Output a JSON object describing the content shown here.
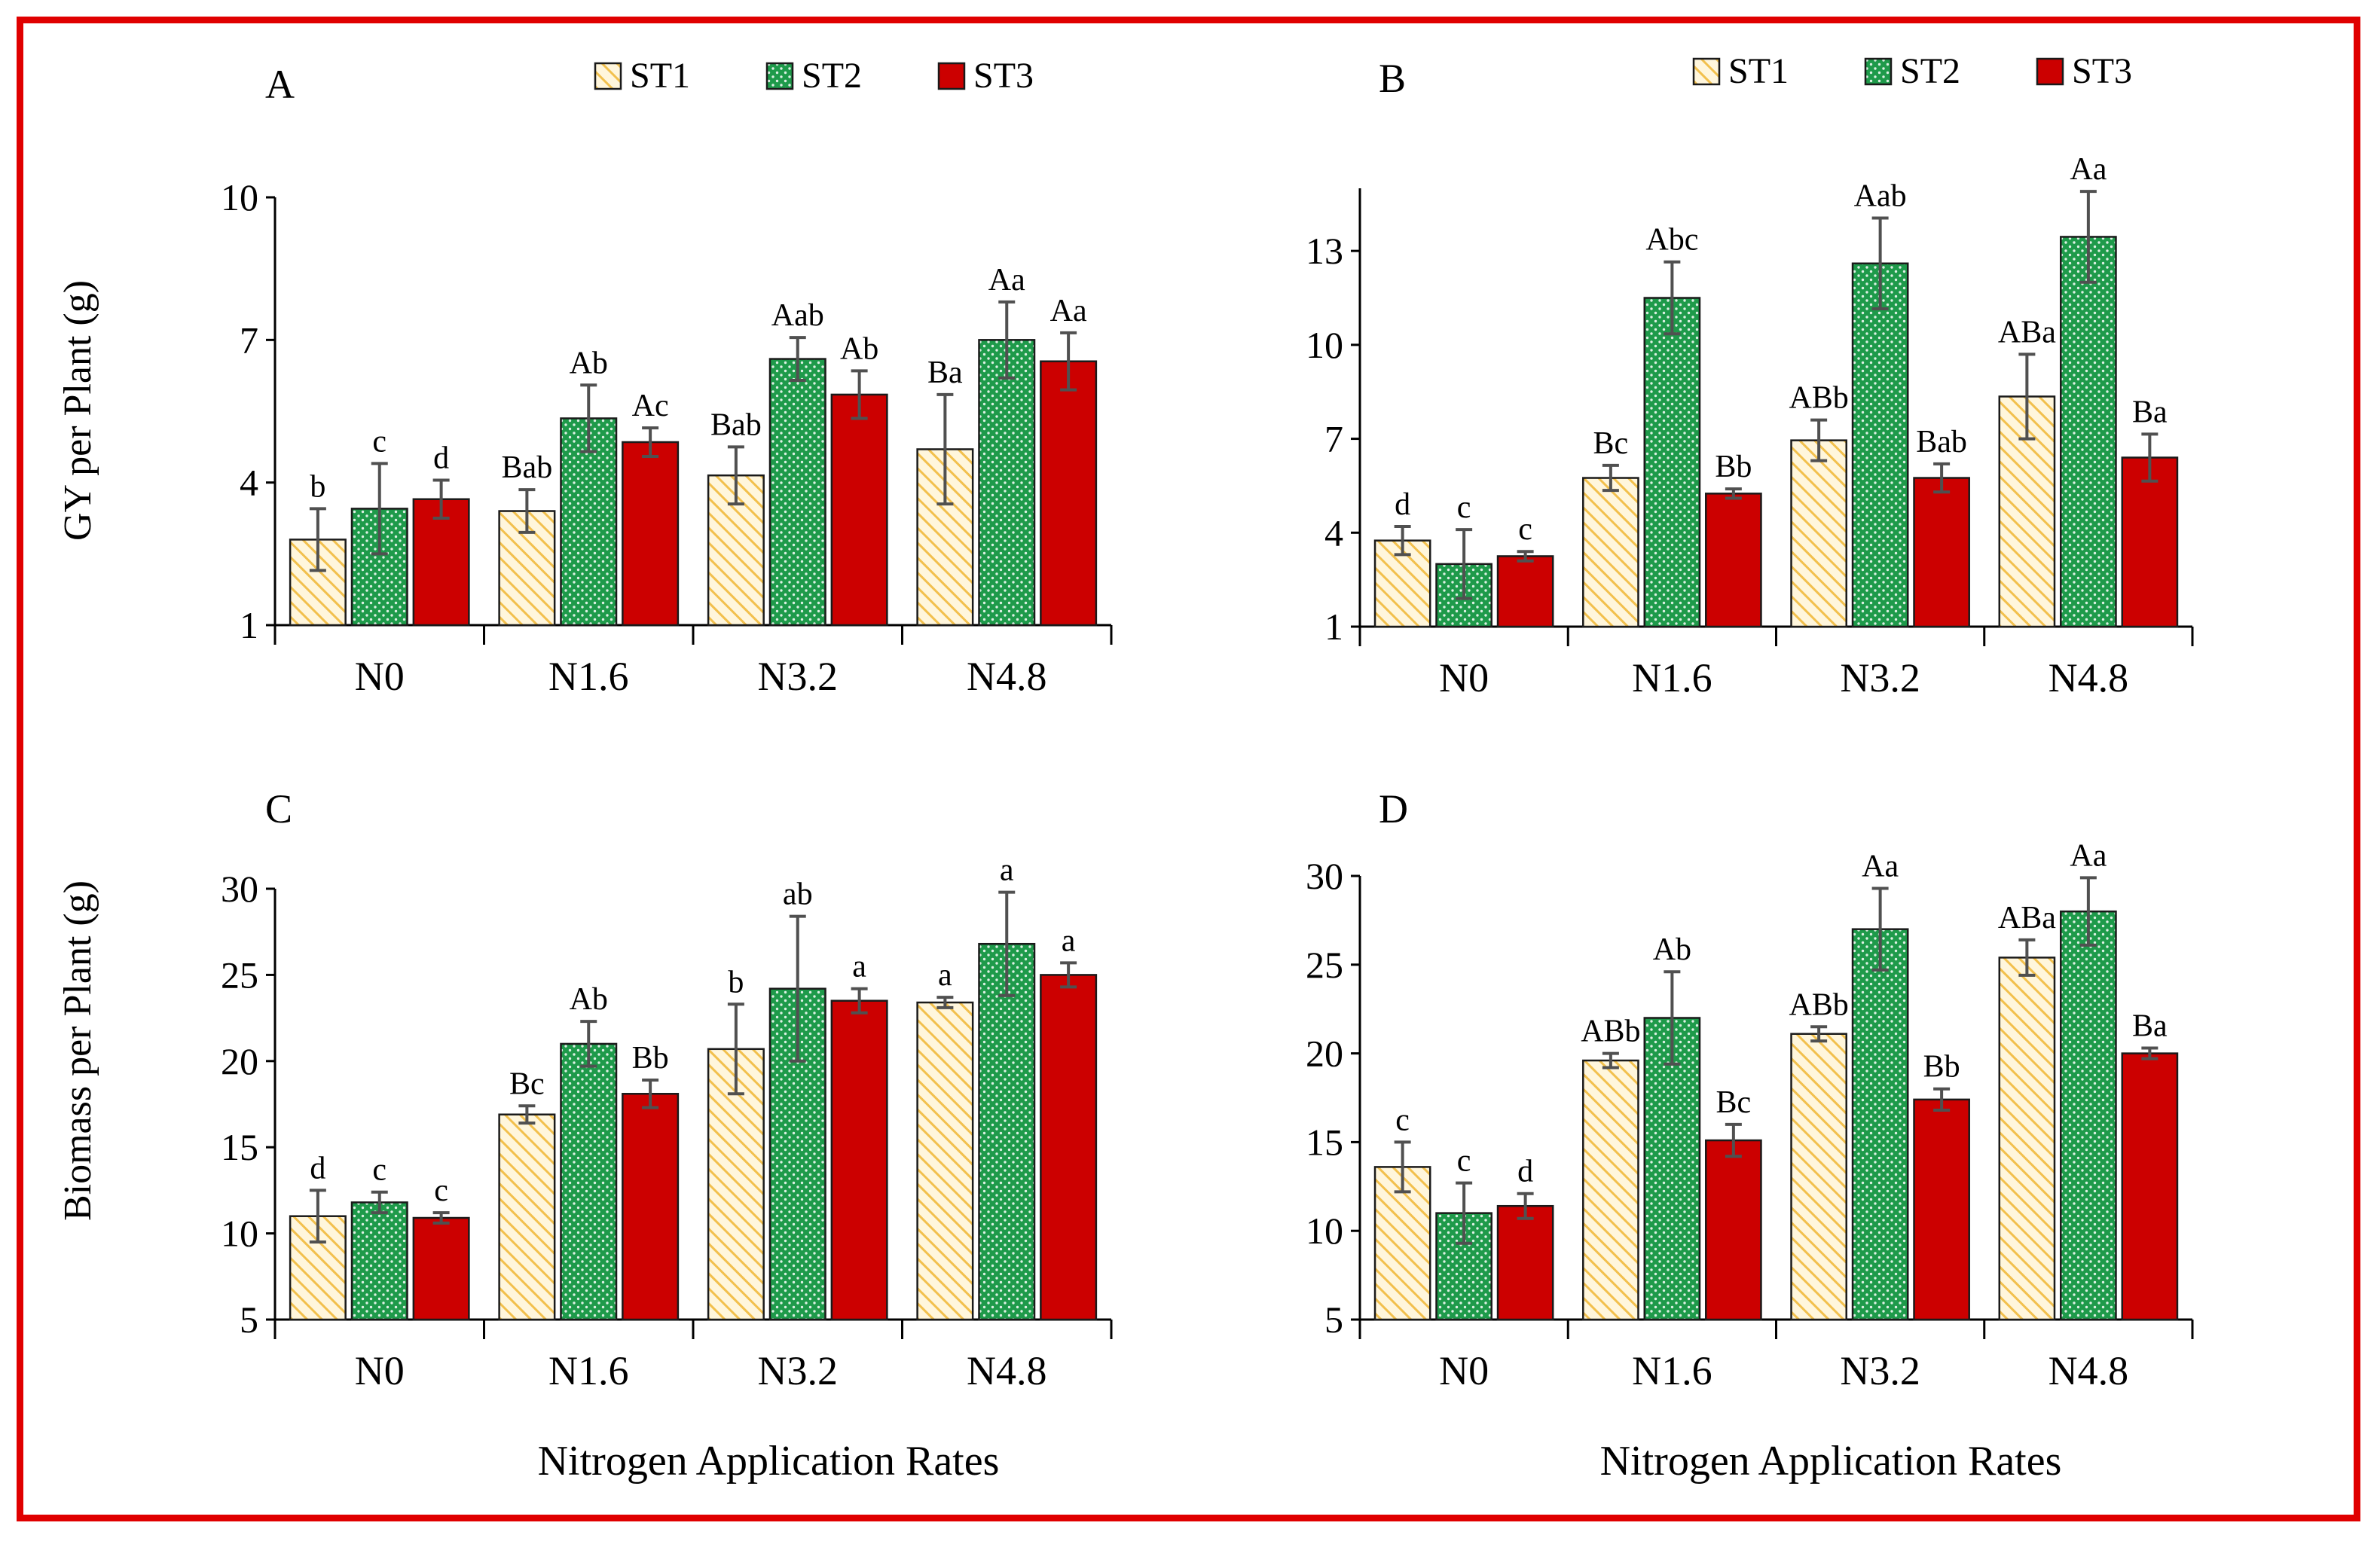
{
  "figure": {
    "border_color": "#e00000"
  },
  "legend": [
    {
      "name": "ST1",
      "pattern": "hatch",
      "color": "#f2c04d",
      "bg": "#fff6dc"
    },
    {
      "name": "ST2",
      "pattern": "dots",
      "color": "#1e9a4a"
    },
    {
      "name": "ST3",
      "pattern": "solid",
      "color": "#cc0000"
    }
  ],
  "chart_data": [
    {
      "panel": "A",
      "type": "bar",
      "ylabel": "GY per Plant (g)",
      "xlabel": "",
      "ylim": [
        1,
        10
      ],
      "yticks": [
        1,
        4,
        7,
        10
      ],
      "categories": [
        "N0",
        "N1.6",
        "N3.2",
        "N4.8"
      ],
      "series": [
        {
          "name": "ST1",
          "values": [
            2.8,
            3.4,
            4.15,
            4.7
          ],
          "errors": [
            0.65,
            0.45,
            0.6,
            1.15
          ],
          "labels": [
            "b",
            "Bab",
            "Bab",
            "Ba"
          ]
        },
        {
          "name": "ST2",
          "values": [
            3.45,
            5.35,
            6.6,
            7.0
          ],
          "errors": [
            0.95,
            0.7,
            0.45,
            0.8
          ],
          "labels": [
            "c",
            "Ab",
            "Aab",
            "Aa"
          ]
        },
        {
          "name": "ST3",
          "values": [
            3.65,
            4.85,
            5.85,
            6.55
          ],
          "errors": [
            0.4,
            0.3,
            0.5,
            0.6
          ],
          "labels": [
            "d",
            "Ac",
            "Ab",
            "Aa"
          ]
        }
      ]
    },
    {
      "panel": "B",
      "type": "bar",
      "ylabel": "",
      "xlabel": "",
      "ylim": [
        1,
        15
      ],
      "yticks": [
        1,
        4,
        7,
        10,
        13
      ],
      "categories": [
        "N0",
        "N1.6",
        "N3.2",
        "N4.8"
      ],
      "series": [
        {
          "name": "ST1",
          "values": [
            3.75,
            5.75,
            6.95,
            8.35
          ],
          "errors": [
            0.45,
            0.4,
            0.65,
            1.35
          ],
          "labels": [
            "d",
            "Bc",
            "ABb",
            "ABa"
          ]
        },
        {
          "name": "ST2",
          "values": [
            3.0,
            11.5,
            12.6,
            13.45
          ],
          "errors": [
            1.1,
            1.15,
            1.45,
            1.45
          ],
          "labels": [
            "c",
            "Abc",
            "Aab",
            "Aa"
          ]
        },
        {
          "name": "ST3",
          "values": [
            3.25,
            5.25,
            5.75,
            6.4
          ],
          "errors": [
            0.15,
            0.15,
            0.45,
            0.75
          ],
          "labels": [
            "c",
            "Bb",
            "Bab",
            "Ba"
          ]
        }
      ]
    },
    {
      "panel": "C",
      "type": "bar",
      "ylabel": "Biomass per Plant (g)",
      "xlabel": "Nitrogen Application Rates",
      "ylim": [
        5,
        30
      ],
      "yticks": [
        5,
        10,
        15,
        20,
        25,
        30
      ],
      "categories": [
        "N0",
        "N1.6",
        "N3.2",
        "N4.8"
      ],
      "series": [
        {
          "name": "ST1",
          "values": [
            11.0,
            16.9,
            20.7,
            23.4
          ],
          "errors": [
            1.5,
            0.5,
            2.6,
            0.3
          ],
          "labels": [
            "d",
            "Bc",
            "b",
            "a"
          ]
        },
        {
          "name": "ST2",
          "values": [
            11.8,
            21.0,
            24.2,
            26.8
          ],
          "errors": [
            0.6,
            1.3,
            4.2,
            3.0
          ],
          "labels": [
            "c",
            "Ab",
            "ab",
            "a"
          ]
        },
        {
          "name": "ST3",
          "values": [
            10.9,
            18.1,
            23.5,
            25.0
          ],
          "errors": [
            0.3,
            0.8,
            0.7,
            0.7
          ],
          "labels": [
            "c",
            "Bb",
            "a",
            "a"
          ]
        }
      ]
    },
    {
      "panel": "D",
      "type": "bar",
      "ylabel": "",
      "xlabel": "Nitrogen Application Rates",
      "ylim": [
        5,
        30
      ],
      "yticks": [
        5,
        10,
        15,
        20,
        25,
        30
      ],
      "categories": [
        "N0",
        "N1.6",
        "N3.2",
        "N4.8"
      ],
      "series": [
        {
          "name": "ST1",
          "values": [
            13.6,
            19.6,
            21.1,
            25.4
          ],
          "errors": [
            1.4,
            0.4,
            0.4,
            1.0
          ],
          "labels": [
            "c",
            "ABb",
            "ABb",
            "ABa"
          ]
        },
        {
          "name": "ST2",
          "values": [
            11.0,
            22.0,
            27.0,
            28.0
          ],
          "errors": [
            1.7,
            2.6,
            2.3,
            1.9
          ],
          "labels": [
            "c",
            "Ab",
            "Aa",
            "Aa"
          ]
        },
        {
          "name": "ST3",
          "values": [
            11.4,
            15.1,
            17.4,
            20.0
          ],
          "errors": [
            0.7,
            0.9,
            0.6,
            0.3
          ],
          "labels": [
            "d",
            "Bc",
            "Bb",
            "Ba"
          ]
        }
      ]
    }
  ]
}
